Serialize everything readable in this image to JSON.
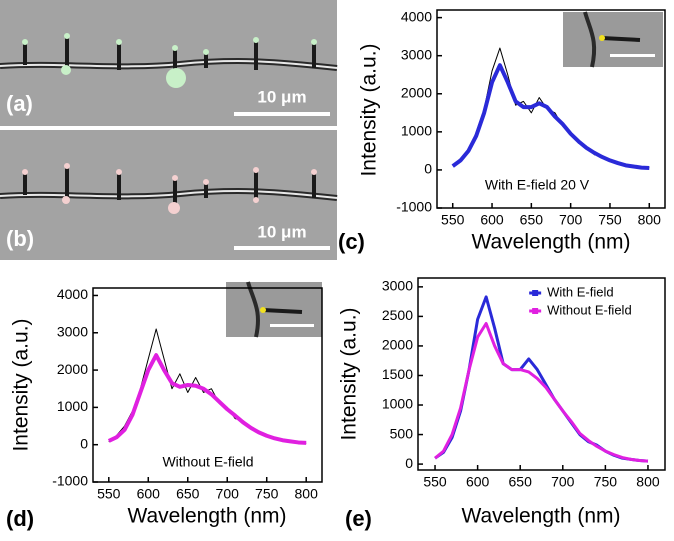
{
  "images": [
    {
      "label": "(a)",
      "scale_bar": "10 μm"
    },
    {
      "label": "(b)",
      "scale_bar": "10 μm"
    }
  ],
  "chart_data": [
    {
      "type": "line",
      "panel": "(c)",
      "annotation": "With E-field 20 V",
      "x_label": "Wavelength (nm)",
      "y_label": "Intensity (a.u.)",
      "x": [
        550,
        560,
        570,
        580,
        590,
        600,
        610,
        620,
        630,
        640,
        650,
        660,
        670,
        680,
        690,
        700,
        710,
        720,
        730,
        740,
        750,
        760,
        770,
        780,
        790,
        800
      ],
      "series": [
        {
          "color": "#000000",
          "values": [
            120,
            300,
            450,
            1000,
            1600,
            2600,
            3200,
            2500,
            1700,
            1800,
            1500,
            1900,
            1600,
            1500,
            1150,
            1000,
            700,
            620,
            400,
            380,
            220,
            200,
            100,
            110,
            40,
            60
          ]
        },
        {
          "color": "#2a2ad8",
          "values": [
            100,
            250,
            500,
            900,
            1500,
            2300,
            2750,
            2300,
            1800,
            1650,
            1650,
            1750,
            1650,
            1400,
            1200,
            950,
            750,
            580,
            450,
            340,
            250,
            180,
            120,
            90,
            60,
            50
          ]
        }
      ],
      "xlim": [
        530,
        820
      ],
      "xticks": [
        550,
        600,
        650,
        700,
        750,
        800
      ],
      "ylim": [
        -1000,
        4200
      ],
      "yticks": [
        -1000,
        0,
        1000,
        2000,
        3000,
        4000
      ]
    },
    {
      "type": "line",
      "panel": "(d)",
      "annotation": "Without E-field",
      "x_label": "Wavelength (nm)",
      "y_label": "Intensity (a.u.)",
      "x": [
        550,
        560,
        570,
        580,
        590,
        600,
        610,
        620,
        630,
        640,
        650,
        660,
        670,
        680,
        690,
        700,
        710,
        720,
        730,
        740,
        750,
        760,
        770,
        780,
        790,
        800
      ],
      "series": [
        {
          "color": "#000000",
          "values": [
            80,
            250,
            500,
            900,
            1500,
            2300,
            3100,
            2300,
            1500,
            1900,
            1400,
            1800,
            1400,
            1500,
            1100,
            1000,
            700,
            650,
            420,
            350,
            250,
            180,
            110,
            100,
            50,
            40
          ]
        },
        {
          "color": "#e020e0",
          "values": [
            100,
            200,
            400,
            800,
            1400,
            2000,
            2400,
            2000,
            1650,
            1550,
            1600,
            1580,
            1500,
            1350,
            1150,
            950,
            780,
            600,
            450,
            330,
            240,
            170,
            120,
            90,
            60,
            50
          ]
        }
      ],
      "xlim": [
        530,
        820
      ],
      "xticks": [
        550,
        600,
        650,
        700,
        750,
        800
      ],
      "ylim": [
        -1000,
        4200
      ],
      "yticks": [
        -1000,
        0,
        1000,
        2000,
        3000,
        4000
      ]
    },
    {
      "type": "line",
      "panel": "(e)",
      "x_label": "Wavelength (nm)",
      "y_label": "Intensity (a.u.)",
      "x": [
        550,
        560,
        570,
        580,
        590,
        600,
        610,
        620,
        630,
        640,
        650,
        660,
        670,
        680,
        690,
        700,
        710,
        720,
        730,
        740,
        750,
        760,
        770,
        780,
        790,
        800
      ],
      "series": [
        {
          "name": "With E-field",
          "color": "#2a2ad8",
          "values": [
            100,
            200,
            450,
            900,
            1600,
            2450,
            2830,
            2300,
            1700,
            1600,
            1600,
            1780,
            1600,
            1350,
            1100,
            900,
            700,
            500,
            380,
            320,
            220,
            150,
            100,
            80,
            60,
            50
          ]
        },
        {
          "name": "Without E-field",
          "color": "#e020e0",
          "values": [
            100,
            220,
            500,
            950,
            1600,
            2150,
            2380,
            2000,
            1700,
            1600,
            1600,
            1560,
            1450,
            1300,
            1100,
            900,
            720,
            520,
            400,
            300,
            220,
            160,
            110,
            80,
            60,
            50
          ]
        }
      ],
      "xlim": [
        530,
        820
      ],
      "xticks": [
        550,
        600,
        650,
        700,
        750,
        800
      ],
      "ylim": [
        -100,
        3150
      ],
      "yticks": [
        0,
        500,
        1000,
        1500,
        2000,
        2500,
        3000
      ],
      "legend": "upper right"
    }
  ]
}
